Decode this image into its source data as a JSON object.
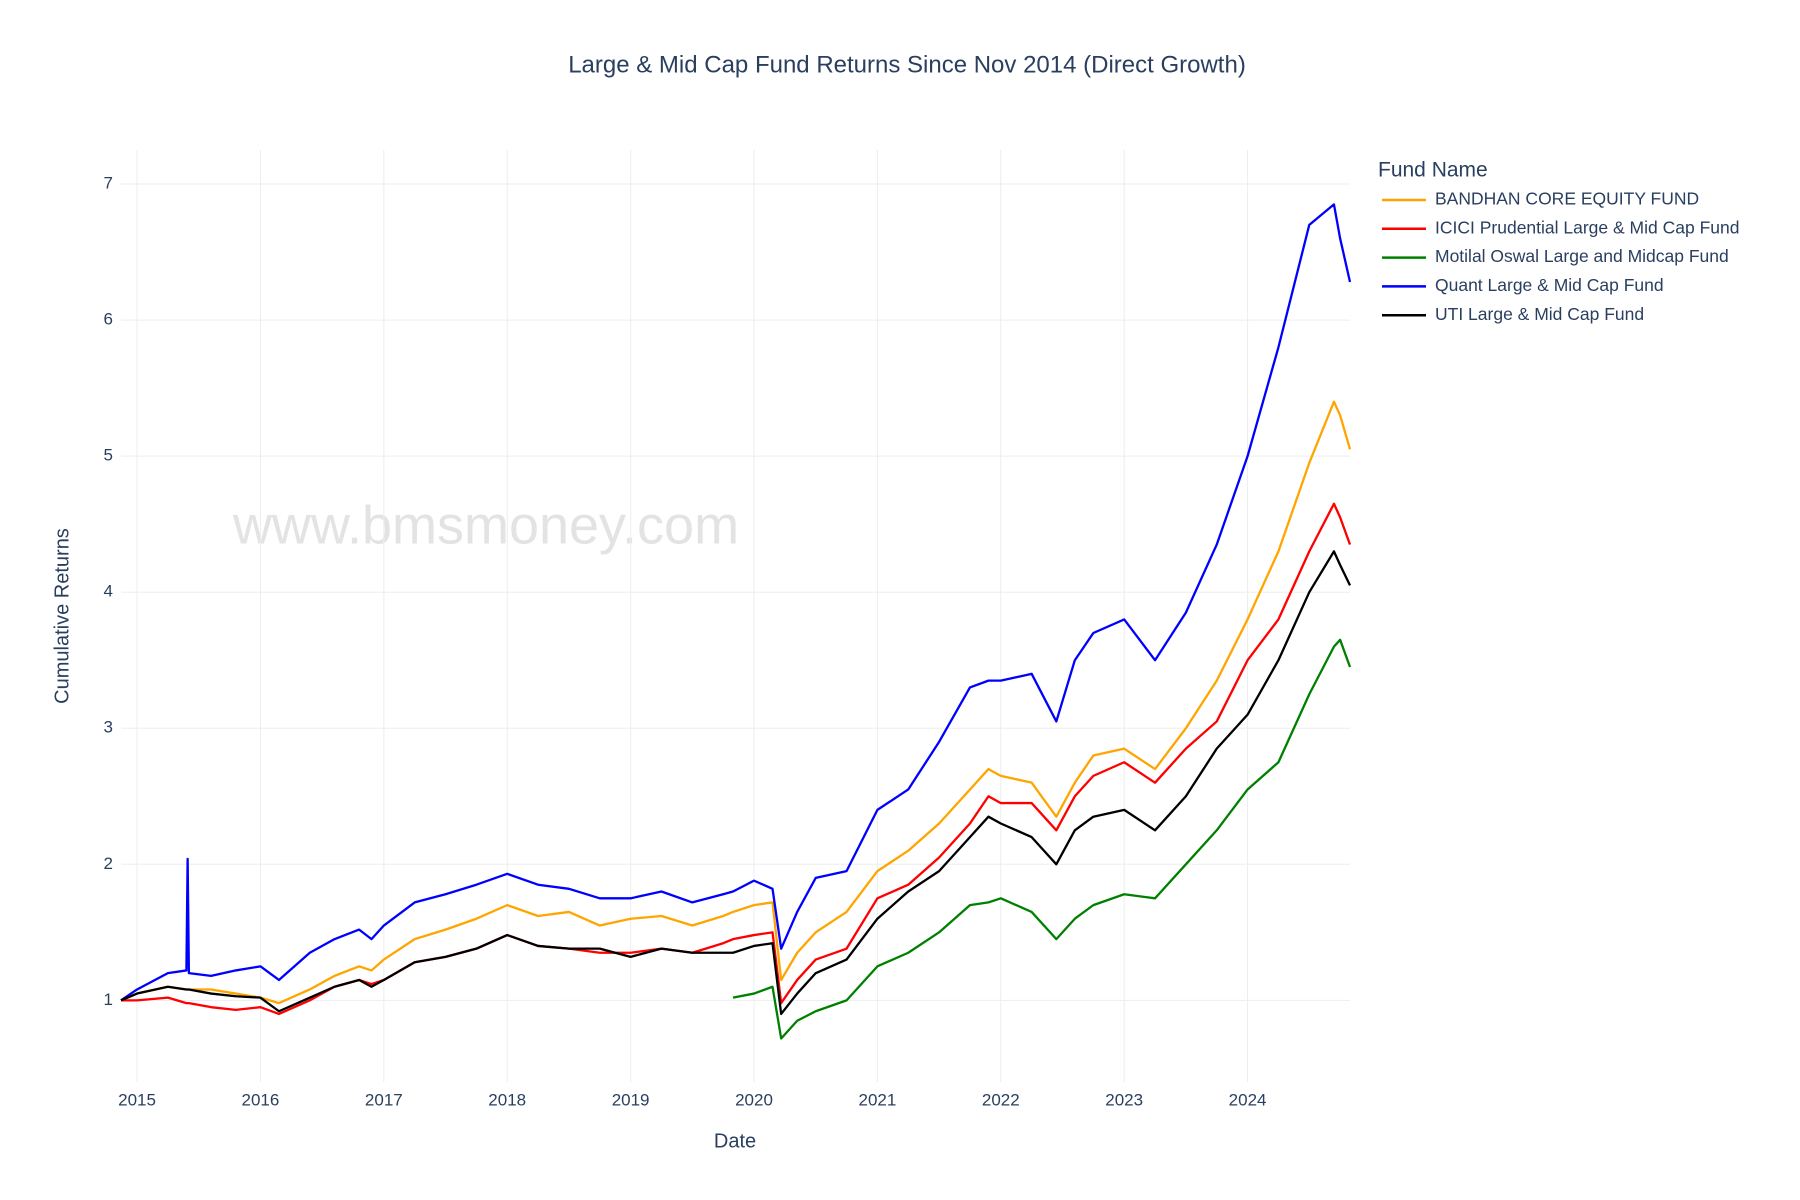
{
  "chart_data": {
    "type": "line",
    "title": "Large & Mid Cap Fund Returns Since Nov 2014 (Direct Growth)",
    "xlabel": "Date",
    "ylabel": "Cumulative Returns",
    "watermark": "www.bmsmoney.com",
    "legend_title": "Fund Name",
    "legend": "right",
    "grid": true,
    "xlim": [
      2014.87,
      2024.83
    ],
    "ylim": [
      0.4,
      7.25
    ],
    "xticks": [
      2015,
      2016,
      2017,
      2018,
      2019,
      2020,
      2021,
      2022,
      2023,
      2024
    ],
    "yticks": [
      1,
      2,
      3,
      4,
      5,
      6,
      7
    ],
    "x": [
      2014.87,
      2015.0,
      2015.25,
      2015.4,
      2015.41,
      2015.42,
      2015.6,
      2015.8,
      2016.0,
      2016.15,
      2016.4,
      2016.6,
      2016.8,
      2016.9,
      2017.0,
      2017.25,
      2017.5,
      2017.75,
      2018.0,
      2018.25,
      2018.5,
      2018.75,
      2019.0,
      2019.25,
      2019.5,
      2019.75,
      2019.83,
      2020.0,
      2020.15,
      2020.22,
      2020.35,
      2020.5,
      2020.75,
      2021.0,
      2021.25,
      2021.5,
      2021.75,
      2021.9,
      2022.0,
      2022.25,
      2022.45,
      2022.6,
      2022.75,
      2023.0,
      2023.25,
      2023.5,
      2023.75,
      2024.0,
      2024.25,
      2024.5,
      2024.7,
      2024.75,
      2024.83
    ],
    "series": [
      {
        "name": "BANDHAN CORE EQUITY FUND",
        "color": "#ffa500",
        "values": [
          1.0,
          1.05,
          1.1,
          1.08,
          1.08,
          1.08,
          1.08,
          1.05,
          1.02,
          0.98,
          1.08,
          1.18,
          1.25,
          1.22,
          1.3,
          1.45,
          1.52,
          1.6,
          1.7,
          1.62,
          1.65,
          1.55,
          1.6,
          1.62,
          1.55,
          1.62,
          1.65,
          1.7,
          1.72,
          1.15,
          1.35,
          1.5,
          1.65,
          1.95,
          2.1,
          2.3,
          2.55,
          2.7,
          2.65,
          2.6,
          2.35,
          2.6,
          2.8,
          2.85,
          2.7,
          3.0,
          3.35,
          3.8,
          4.3,
          4.95,
          5.4,
          5.3,
          5.05
        ]
      },
      {
        "name": "ICICI Prudential Large & Mid Cap Fund",
        "color": "#ff0000",
        "values": [
          1.0,
          1.0,
          1.02,
          0.98,
          0.98,
          0.98,
          0.95,
          0.93,
          0.95,
          0.9,
          1.0,
          1.1,
          1.15,
          1.12,
          1.15,
          1.28,
          1.32,
          1.38,
          1.48,
          1.4,
          1.38,
          1.35,
          1.35,
          1.38,
          1.35,
          1.42,
          1.45,
          1.48,
          1.5,
          0.98,
          1.15,
          1.3,
          1.38,
          1.75,
          1.85,
          2.05,
          2.3,
          2.5,
          2.45,
          2.45,
          2.25,
          2.5,
          2.65,
          2.75,
          2.6,
          2.85,
          3.05,
          3.5,
          3.8,
          4.3,
          4.65,
          4.55,
          4.35
        ]
      },
      {
        "name": "Motilal Oswal Large and Midcap Fund",
        "color": "#008000",
        "values": [
          null,
          null,
          null,
          null,
          null,
          null,
          null,
          null,
          null,
          null,
          null,
          null,
          null,
          null,
          null,
          null,
          null,
          null,
          null,
          null,
          null,
          null,
          null,
          null,
          null,
          null,
          1.02,
          1.05,
          1.1,
          0.72,
          0.85,
          0.92,
          1.0,
          1.25,
          1.35,
          1.5,
          1.7,
          1.72,
          1.75,
          1.65,
          1.45,
          1.6,
          1.7,
          1.78,
          1.75,
          2.0,
          2.25,
          2.55,
          2.75,
          3.25,
          3.6,
          3.65,
          3.45
        ]
      },
      {
        "name": "Quant Large & Mid Cap Fund",
        "color": "#0000ff",
        "values": [
          1.0,
          1.08,
          1.2,
          1.22,
          2.04,
          1.2,
          1.18,
          1.22,
          1.25,
          1.15,
          1.35,
          1.45,
          1.52,
          1.45,
          1.55,
          1.72,
          1.78,
          1.85,
          1.93,
          1.85,
          1.82,
          1.75,
          1.75,
          1.8,
          1.72,
          1.78,
          1.8,
          1.88,
          1.82,
          1.38,
          1.65,
          1.9,
          1.95,
          2.4,
          2.55,
          2.9,
          3.3,
          3.35,
          3.35,
          3.4,
          3.05,
          3.5,
          3.7,
          3.8,
          3.5,
          3.85,
          4.35,
          5.0,
          5.8,
          6.7,
          6.85,
          6.6,
          6.28
        ]
      },
      {
        "name": "UTI Large & Mid Cap Fund",
        "color": "#000000",
        "values": [
          1.0,
          1.05,
          1.1,
          1.08,
          1.08,
          1.08,
          1.05,
          1.03,
          1.02,
          0.92,
          1.02,
          1.1,
          1.15,
          1.1,
          1.15,
          1.28,
          1.32,
          1.38,
          1.48,
          1.4,
          1.38,
          1.38,
          1.32,
          1.38,
          1.35,
          1.35,
          1.35,
          1.4,
          1.42,
          0.9,
          1.05,
          1.2,
          1.3,
          1.6,
          1.8,
          1.95,
          2.2,
          2.35,
          2.3,
          2.2,
          2.0,
          2.25,
          2.35,
          2.4,
          2.25,
          2.5,
          2.85,
          3.1,
          3.5,
          4.0,
          4.3,
          4.2,
          4.05
        ]
      }
    ]
  }
}
